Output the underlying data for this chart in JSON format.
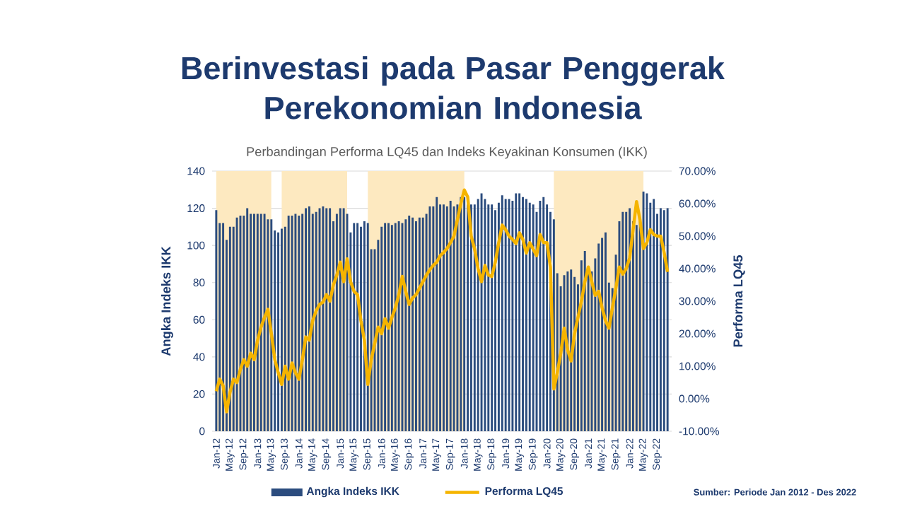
{
  "chart_data": {
    "type": "bar",
    "title": "Berinvestasi pada Pasar Penggerak Perekonomian Indonesia",
    "subtitle": "Perbandingan Performa LQ45 dan Indeks Keyakinan Konsumen (IKK)",
    "ylabel": "Angka Indeks IKK",
    "y2label": "Performa LQ45",
    "annotations": [
      "Sumber: Periode Jan 2012 - Des 2022"
    ],
    "x": [
      "2012-01",
      "2012-02",
      "2012-03",
      "2012-04",
      "2012-05",
      "2012-06",
      "2012-07",
      "2012-08",
      "2012-09",
      "2012-10",
      "2012-11",
      "2012-12",
      "2013-01",
      "2013-02",
      "2013-03",
      "2013-04",
      "2013-05",
      "2013-06",
      "2013-07",
      "2013-08",
      "2013-09",
      "2013-10",
      "2013-11",
      "2013-12",
      "2014-01",
      "2014-02",
      "2014-03",
      "2014-04",
      "2014-05",
      "2014-06",
      "2014-07",
      "2014-08",
      "2014-09",
      "2014-10",
      "2014-11",
      "2014-12",
      "2015-01",
      "2015-02",
      "2015-03",
      "2015-04",
      "2015-05",
      "2015-06",
      "2015-07",
      "2015-08",
      "2015-09",
      "2015-10",
      "2015-11",
      "2015-12",
      "2016-01",
      "2016-02",
      "2016-03",
      "2016-04",
      "2016-05",
      "2016-06",
      "2016-07",
      "2016-08",
      "2016-09",
      "2016-10",
      "2016-11",
      "2016-12",
      "2017-01",
      "2017-02",
      "2017-03",
      "2017-04",
      "2017-05",
      "2017-06",
      "2017-07",
      "2017-08",
      "2017-09",
      "2017-10",
      "2017-11",
      "2017-12",
      "2018-01",
      "2018-02",
      "2018-03",
      "2018-04",
      "2018-05",
      "2018-06",
      "2018-07",
      "2018-08",
      "2018-09",
      "2018-10",
      "2018-11",
      "2018-12",
      "2019-01",
      "2019-02",
      "2019-03",
      "2019-04",
      "2019-05",
      "2019-06",
      "2019-07",
      "2019-08",
      "2019-09",
      "2019-10",
      "2019-11",
      "2019-12",
      "2020-01",
      "2020-02",
      "2020-03",
      "2020-04",
      "2020-05",
      "2020-06",
      "2020-07",
      "2020-08",
      "2020-09",
      "2020-10",
      "2020-11",
      "2020-12",
      "2021-01",
      "2021-02",
      "2021-03",
      "2021-04",
      "2021-05",
      "2021-06",
      "2021-07",
      "2021-08",
      "2021-09",
      "2021-10",
      "2021-11",
      "2021-12",
      "2022-01",
      "2022-02",
      "2022-03",
      "2022-04",
      "2022-05",
      "2022-06",
      "2022-07",
      "2022-08",
      "2022-09",
      "2022-10",
      "2022-11",
      "2022-12"
    ],
    "series": [
      {
        "name": "Angka Indeks IKK",
        "color": "#2b4c7e",
        "values": [
          119,
          112,
          112,
          103,
          110,
          110,
          115,
          116,
          116,
          120,
          117,
          117,
          117,
          117,
          117,
          114,
          114,
          108,
          107,
          109,
          110,
          116,
          116,
          117,
          116,
          117,
          120,
          121,
          117,
          118,
          120,
          121,
          120,
          120,
          113,
          117,
          120,
          120,
          117,
          107,
          112,
          112,
          110,
          113,
          112,
          98,
          98,
          103,
          110,
          112,
          112,
          111,
          112,
          113,
          112,
          114,
          116,
          115,
          113,
          115,
          115,
          117,
          121,
          121,
          126,
          122,
          122,
          121,
          124,
          121,
          122,
          126,
          126,
          122,
          122,
          122,
          125,
          128,
          125,
          122,
          122,
          119,
          123,
          127,
          125,
          125,
          124,
          128,
          128,
          126,
          125,
          123,
          122,
          118,
          124,
          126,
          122,
          118,
          114,
          85,
          78,
          84,
          86,
          87,
          83,
          79,
          92,
          97,
          85,
          86,
          93,
          101,
          104,
          107,
          80,
          77,
          95,
          113,
          118,
          118,
          120,
          113,
          111,
          113,
          129,
          128,
          123,
          125,
          117,
          120,
          119,
          120
        ]
      },
      {
        "name": "Performa LQ45",
        "type": "line",
        "axis": "y2",
        "color": "#f5b400",
        "values": [
          2.3,
          6,
          4,
          -4,
          2,
          6,
          5,
          9,
          12,
          10,
          14,
          12,
          18,
          22,
          25,
          27.5,
          20,
          12,
          8,
          4.4,
          10,
          6,
          11,
          8,
          6,
          12,
          19,
          18,
          24,
          27,
          29,
          29.7,
          32,
          30,
          35,
          38,
          42,
          36,
          43,
          36,
          33,
          32,
          24,
          18,
          4.4,
          12,
          17,
          22,
          20,
          24.6,
          21.7,
          25,
          28,
          32,
          37.6,
          33,
          29,
          31,
          32,
          34,
          36,
          38,
          39.7,
          41,
          42,
          44,
          45,
          46.2,
          48,
          50,
          55,
          60,
          64.2,
          62,
          50,
          46,
          40,
          36,
          41,
          38,
          37.6,
          42,
          48,
          53.4,
          52,
          50,
          49,
          47.7,
          51,
          49,
          44.8,
          48,
          46,
          44,
          50.5,
          48,
          48,
          40.5,
          3,
          8,
          14,
          21.7,
          15,
          11.6,
          20,
          25,
          30,
          36,
          40.5,
          36,
          31.8,
          33,
          28,
          24,
          21.7,
          28,
          34,
          40.5,
          38.3,
          40,
          43.3,
          52,
          60.6,
          55,
          46.2,
          48,
          52,
          50.5,
          50,
          50,
          45,
          39
        ]
      }
    ],
    "xlim": [
      "2011-12",
      "2023-01"
    ],
    "xticks": [
      {
        "value": "2012-01",
        "label": "Jan-12"
      },
      {
        "value": "2012-05",
        "label": "May-12"
      },
      {
        "value": "2012-09",
        "label": "Sep-12"
      },
      {
        "value": "2013-01",
        "label": "Jan-13"
      },
      {
        "value": "2013-05",
        "label": "May-13"
      },
      {
        "value": "2013-09",
        "label": "Sep-13"
      },
      {
        "value": "2014-01",
        "label": "Jan-14"
      },
      {
        "value": "2014-05",
        "label": "May-14"
      },
      {
        "value": "2014-09",
        "label": "Sep-14"
      },
      {
        "value": "2015-01",
        "label": "Jan-15"
      },
      {
        "value": "2015-05",
        "label": "May-15"
      },
      {
        "value": "2015-09",
        "label": "Sep-15"
      },
      {
        "value": "2016-01",
        "label": "Jan-16"
      },
      {
        "value": "2016-05",
        "label": "May-16"
      },
      {
        "value": "2016-09",
        "label": "Sep-16"
      },
      {
        "value": "2017-01",
        "label": "Jan-17"
      },
      {
        "value": "2017-05",
        "label": "May-17"
      },
      {
        "value": "2017-09",
        "label": "Sep-17"
      },
      {
        "value": "2018-01",
        "label": "Jan-18"
      },
      {
        "value": "2018-05",
        "label": "May-18"
      },
      {
        "value": "2018-09",
        "label": "Sep-18"
      },
      {
        "value": "2019-01",
        "label": "Jan-19"
      },
      {
        "value": "2019-05",
        "label": "May-19"
      },
      {
        "value": "2019-09",
        "label": "Sep-19"
      },
      {
        "value": "2020-01",
        "label": "Jan-20"
      },
      {
        "value": "2020-05",
        "label": "May-20"
      },
      {
        "value": "2020-09",
        "label": "Sep-20"
      },
      {
        "value": "2021-01",
        "label": "Jan-21"
      },
      {
        "value": "2021-05",
        "label": "May-21"
      },
      {
        "value": "2021-09",
        "label": "Sep-21"
      },
      {
        "value": "2022-01",
        "label": "Jan-22"
      },
      {
        "value": "2022-05",
        "label": "May-22"
      },
      {
        "value": "2022-09",
        "label": "Sep-22"
      }
    ],
    "ylim": [
      0,
      140
    ],
    "yticks": [
      0,
      20,
      40,
      60,
      80,
      100,
      120,
      140
    ],
    "y2lim": [
      -10,
      70
    ],
    "y2ticks": [
      {
        "value": -10,
        "label": "-10.00%"
      },
      {
        "value": 0,
        "label": "0.00%"
      },
      {
        "value": 10,
        "label": "10.00%"
      },
      {
        "value": 20,
        "label": "20.00%"
      },
      {
        "value": 30,
        "label": "30.00%"
      },
      {
        "value": 40,
        "label": "40.00%"
      },
      {
        "value": 50,
        "label": "50.00%"
      },
      {
        "value": 60,
        "label": "60.00%"
      },
      {
        "value": 70,
        "label": "70.00%"
      }
    ],
    "bands": [
      {
        "axis": "x",
        "from": "2012-01",
        "to": "2013-05",
        "color": "#fde9c0"
      },
      {
        "axis": "x",
        "from": "2013-08",
        "to": "2015-03",
        "color": "#fde9c0"
      },
      {
        "axis": "x",
        "from": "2015-09",
        "to": "2018-01",
        "color": "#fde9c0"
      },
      {
        "axis": "x",
        "from": "2020-03",
        "to": "2022-05",
        "color": "#fde9c0"
      }
    ],
    "grid": "y",
    "legend": "bottom"
  }
}
